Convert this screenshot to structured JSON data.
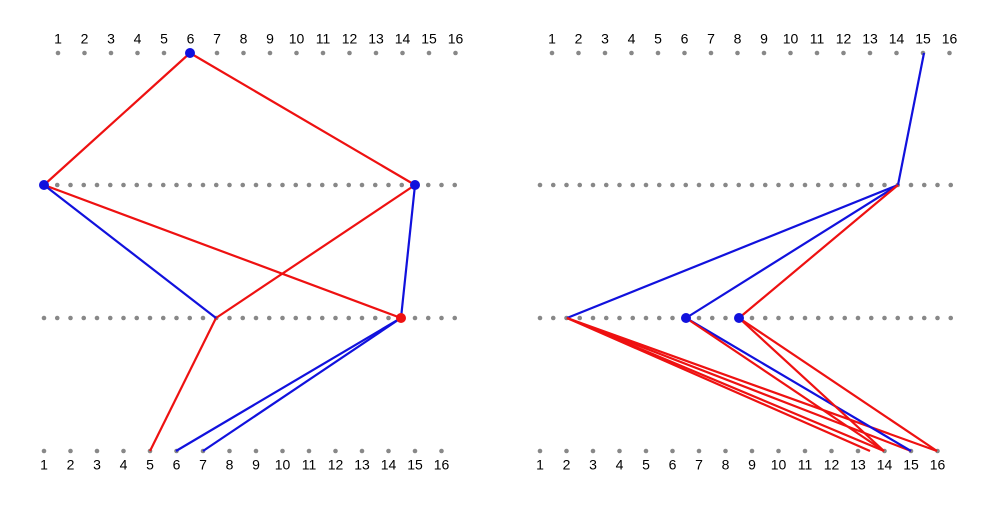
{
  "panels": [
    {
      "top_labels": [
        "1",
        "2",
        "3",
        "4",
        "5",
        "6",
        "7",
        "8",
        "9",
        "10",
        "11",
        "12",
        "13",
        "14",
        "15",
        "16"
      ],
      "bottom_labels": [
        "1",
        "2",
        "3",
        "4",
        "5",
        "6",
        "7",
        "8",
        "9",
        "10",
        "11",
        "12",
        "13",
        "14",
        "15",
        "16"
      ]
    },
    {
      "top_labels": [
        "1",
        "2",
        "3",
        "4",
        "5",
        "6",
        "7",
        "8",
        "9",
        "10",
        "11",
        "12",
        "13",
        "14",
        "15",
        "16"
      ],
      "bottom_labels": [
        "1",
        "2",
        "3",
        "4",
        "5",
        "6",
        "7",
        "8",
        "9",
        "10",
        "11",
        "12",
        "13",
        "14",
        "15",
        "16"
      ]
    }
  ]
}
